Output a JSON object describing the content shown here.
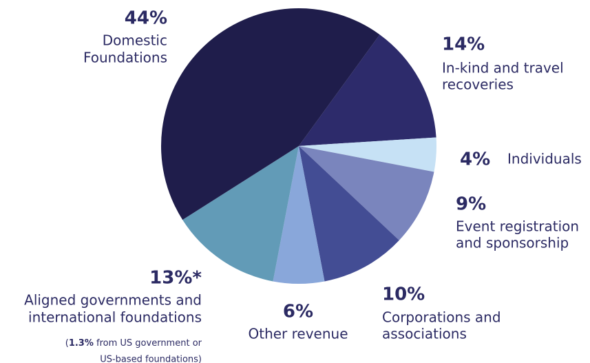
{
  "chart_data": {
    "type": "pie",
    "categories": [
      [
        "In-kind and travel",
        "recoveries"
      ],
      [
        "Individuals"
      ],
      [
        "Event registration",
        "and sponsorship"
      ],
      [
        "Corporations and",
        "associations"
      ],
      [
        "Other revenue"
      ],
      [
        "Aligned governments and",
        "international foundations"
      ],
      [
        "Domestic",
        "Foundations"
      ]
    ],
    "values": [
      14,
      4,
      9,
      10,
      6,
      13,
      44
    ],
    "value_labels": [
      "14%",
      "4%",
      "9%",
      "10%",
      "6%",
      "13%*",
      "44%"
    ],
    "colors": [
      "#2d2b6b",
      "#c6e1f5",
      "#7a85bd",
      "#434d94",
      "#89a7da",
      "#629bb7",
      "#1f1d4b"
    ],
    "note": {
      "open": "(",
      "highlight": "1.3%",
      "rest": " from US government or",
      "line2": "US-based foundations)"
    }
  }
}
